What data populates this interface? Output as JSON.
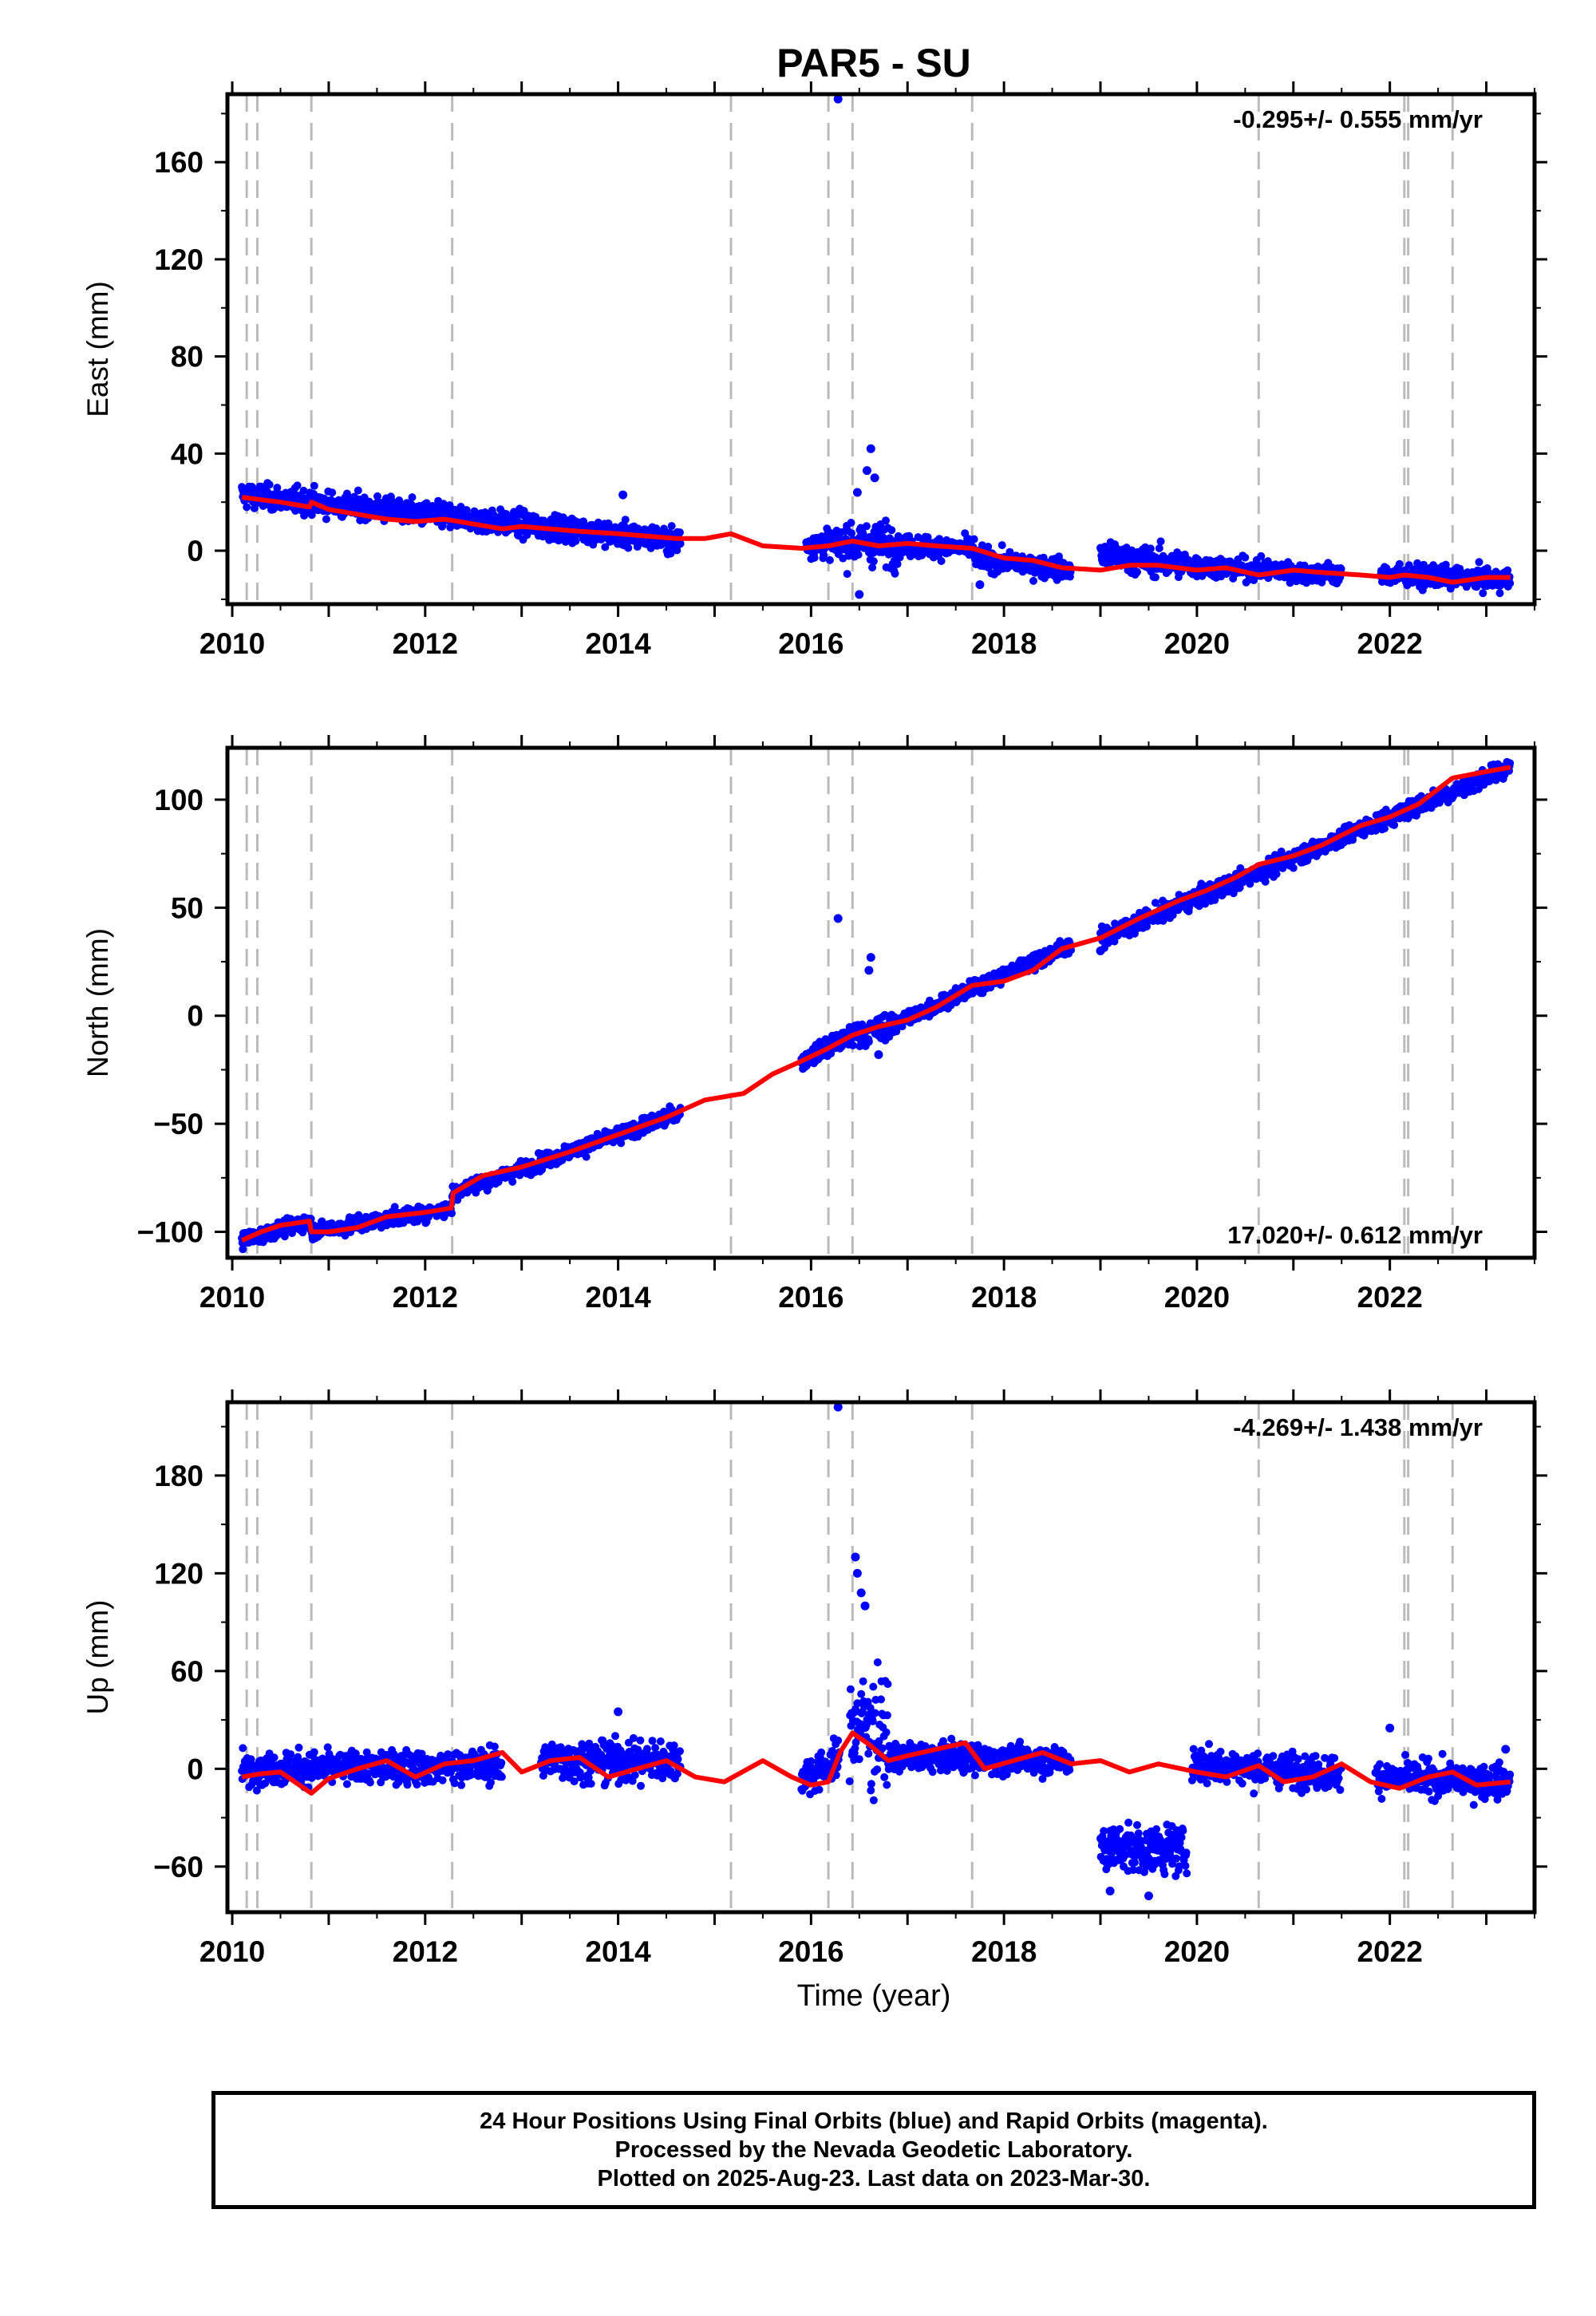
{
  "title": "PAR5 - SU",
  "colors": {
    "data": "#0000ff",
    "model": "#ff0000",
    "offset_line": "#bbbbbb",
    "frame": "#000000"
  },
  "chart_data": [
    {
      "type": "scatter",
      "component": "east",
      "ylabel": "East (mm)",
      "xlabel": "",
      "ylim": [
        -22,
        188
      ],
      "xlim": [
        2009.95,
        2023.5
      ],
      "yticks": [
        0,
        40,
        80,
        120,
        160
      ],
      "xticks": [
        2010,
        2012,
        2014,
        2016,
        2018,
        2020,
        2022
      ],
      "rate_label": "-0.295+/- 0.555 mm/yr",
      "rate_position": "top-right",
      "offsets": [
        2010.15,
        2010.26,
        2010.82,
        2012.28,
        2015.17,
        2016.18,
        2016.43,
        2017.67,
        2020.64,
        2022.15,
        2022.19,
        2022.65
      ],
      "model": {
        "x": [
          2010.1,
          2010.3,
          2010.5,
          2010.8,
          2010.82,
          2011.0,
          2011.3,
          2011.6,
          2011.9,
          2012.2,
          2012.5,
          2012.8,
          2013.0,
          2013.3,
          2013.6,
          2014.0,
          2014.3,
          2014.6,
          2014.9,
          2015.17,
          2015.5,
          2015.9,
          2016.18,
          2016.43,
          2016.7,
          2017.0,
          2017.3,
          2017.67,
          2018.0,
          2018.3,
          2018.6,
          2019.0,
          2019.3,
          2019.6,
          2020.0,
          2020.3,
          2020.64,
          2021.0,
          2021.3,
          2021.7,
          2022.0,
          2022.15,
          2022.4,
          2022.65,
          2023.0,
          2023.25
        ],
        "y": [
          22,
          21,
          20,
          18,
          20,
          17,
          15,
          13,
          12,
          13,
          11,
          9,
          10,
          9,
          8,
          7,
          6,
          5,
          5,
          7,
          2,
          1,
          2,
          4,
          2,
          3,
          2,
          1,
          -3,
          -4,
          -7,
          -8,
          -6,
          -6,
          -8,
          -7,
          -10,
          -8,
          -9,
          -10,
          -11,
          -10,
          -11,
          -13,
          -11,
          -11
        ]
      },
      "segments": [
        {
          "x0": 2010.1,
          "x1": 2014.65,
          "y0": 23,
          "y1": 4,
          "noise": 3.5
        },
        {
          "x0": 2015.95,
          "x1": 2016.35,
          "y0": 3,
          "y1": 3,
          "noise": 4
        },
        {
          "x0": 2016.35,
          "x1": 2016.9,
          "y0": 4,
          "y1": 2,
          "noise": 6
        },
        {
          "x0": 2016.9,
          "x1": 2017.7,
          "y0": 2,
          "y1": 1,
          "noise": 3
        },
        {
          "x0": 2017.7,
          "x1": 2018.7,
          "y0": -3,
          "y1": -8,
          "noise": 3
        },
        {
          "x0": 2019.0,
          "x1": 2019.9,
          "y0": -2,
          "y1": -6,
          "noise": 4
        },
        {
          "x0": 2019.9,
          "x1": 2021.5,
          "y0": -6,
          "y1": -10,
          "noise": 3
        },
        {
          "x0": 2021.9,
          "x1": 2023.25,
          "y0": -10,
          "y1": -12,
          "noise": 3
        }
      ],
      "outliers": [
        [
          2016.28,
          186
        ],
        [
          2016.62,
          42
        ],
        [
          2016.66,
          30
        ],
        [
          2016.48,
          24
        ],
        [
          2016.5,
          -18
        ],
        [
          2014.05,
          23
        ],
        [
          2017.75,
          -14
        ],
        [
          2016.58,
          33
        ]
      ]
    },
    {
      "type": "scatter",
      "component": "north",
      "ylabel": "North (mm)",
      "xlabel": "",
      "ylim": [
        -112,
        124
      ],
      "xlim": [
        2009.95,
        2023.5
      ],
      "yticks": [
        -100,
        -50,
        0,
        50,
        100
      ],
      "xticks": [
        2010,
        2012,
        2014,
        2016,
        2018,
        2020,
        2022
      ],
      "rate_label": "17.020+/- 0.612 mm/yr",
      "rate_position": "bottom-right",
      "offsets": [
        2010.15,
        2010.26,
        2010.82,
        2012.28,
        2015.17,
        2016.18,
        2016.43,
        2017.67,
        2020.64,
        2022.15,
        2022.19,
        2022.65
      ],
      "model": {
        "x": [
          2010.1,
          2010.3,
          2010.5,
          2010.8,
          2010.82,
          2011.0,
          2011.3,
          2011.6,
          2012.0,
          2012.27,
          2012.29,
          2012.6,
          2013.0,
          2013.5,
          2014.0,
          2014.5,
          2014.9,
          2015.3,
          2015.6,
          2015.9,
          2016.18,
          2016.43,
          2016.7,
          2017.0,
          2017.3,
          2017.67,
          2018.0,
          2018.3,
          2018.6,
          2019.0,
          2019.4,
          2019.8,
          2020.1,
          2020.4,
          2020.64,
          2021.0,
          2021.3,
          2021.7,
          2022.0,
          2022.3,
          2022.65,
          2023.0,
          2023.25
        ],
        "y": [
          -104,
          -100,
          -97,
          -95,
          -100,
          -100,
          -98,
          -93,
          -91,
          -89,
          -82,
          -74,
          -70,
          -63,
          -55,
          -47,
          -39,
          -36,
          -27,
          -21,
          -15,
          -9,
          -5,
          -2,
          4,
          14,
          16,
          21,
          31,
          36,
          45,
          53,
          58,
          64,
          70,
          74,
          79,
          88,
          92,
          98,
          110,
          113,
          115
        ]
      },
      "segments": [
        {
          "x0": 2010.1,
          "x1": 2010.82,
          "y0": -104,
          "y1": -95,
          "noise": 2.5
        },
        {
          "x0": 2010.82,
          "x1": 2012.28,
          "y0": -100,
          "y1": -89,
          "noise": 2.5
        },
        {
          "x0": 2012.28,
          "x1": 2014.65,
          "y0": -82,
          "y1": -45,
          "noise": 2.5
        },
        {
          "x0": 2015.9,
          "x1": 2016.4,
          "y0": -21,
          "y1": -10,
          "noise": 3
        },
        {
          "x0": 2016.4,
          "x1": 2016.9,
          "y0": -9,
          "y1": -4,
          "noise": 4
        },
        {
          "x0": 2016.9,
          "x1": 2018.7,
          "y0": -3,
          "y1": 33,
          "noise": 2.5
        },
        {
          "x0": 2019.0,
          "x1": 2023.25,
          "y0": 36,
          "y1": 115,
          "noise": 3
        }
      ],
      "outliers": [
        [
          2016.28,
          45
        ],
        [
          2016.62,
          27
        ],
        [
          2016.6,
          21
        ],
        [
          2016.7,
          -18
        ],
        [
          2019.0,
          30
        ]
      ]
    },
    {
      "type": "scatter",
      "component": "up",
      "ylabel": "Up (mm)",
      "xlabel": "Time (year)",
      "ylim": [
        -88,
        225
      ],
      "xlim": [
        2009.95,
        2023.5
      ],
      "yticks": [
        -60,
        0,
        60,
        120,
        180
      ],
      "xticks": [
        2010,
        2012,
        2014,
        2016,
        2018,
        2020,
        2022
      ],
      "rate_label": "-4.269+/- 1.438 mm/yr",
      "rate_position": "top-right",
      "offsets": [
        2010.15,
        2010.26,
        2010.82,
        2012.28,
        2015.17,
        2016.18,
        2016.43,
        2017.67,
        2020.64,
        2022.15,
        2022.19,
        2022.65
      ],
      "model": {
        "x": [
          2010.1,
          2010.3,
          2010.5,
          2010.82,
          2011.0,
          2011.3,
          2011.6,
          2011.9,
          2012.2,
          2012.5,
          2012.8,
          2013.0,
          2013.3,
          2013.6,
          2013.9,
          2014.2,
          2014.5,
          2014.8,
          2015.1,
          2015.5,
          2015.8,
          2016.0,
          2016.18,
          2016.3,
          2016.43,
          2016.6,
          2016.8,
          2017.0,
          2017.3,
          2017.6,
          2017.8,
          2018.1,
          2018.4,
          2018.7,
          2019.0,
          2019.3,
          2019.6,
          2020.0,
          2020.3,
          2020.64,
          2020.9,
          2021.2,
          2021.5,
          2021.8,
          2022.1,
          2022.4,
          2022.65,
          2022.9,
          2023.25
        ],
        "y": [
          -5,
          -3,
          -2,
          -15,
          -6,
          0,
          5,
          -5,
          3,
          5,
          10,
          -2,
          5,
          7,
          -5,
          0,
          5,
          -5,
          -8,
          5,
          -5,
          -10,
          -8,
          10,
          22,
          15,
          5,
          8,
          12,
          16,
          0,
          5,
          10,
          3,
          5,
          -2,
          3,
          -2,
          -5,
          2,
          -8,
          -5,
          3,
          -8,
          -12,
          -5,
          -2,
          -10,
          -8
        ]
      },
      "segments": [
        {
          "x0": 2010.1,
          "x1": 2012.8,
          "y0": 0,
          "y1": 2,
          "noise": 7
        },
        {
          "x0": 2013.2,
          "x1": 2014.65,
          "y0": 5,
          "y1": 5,
          "noise": 9
        },
        {
          "x0": 2015.9,
          "x1": 2016.3,
          "y0": -5,
          "y1": 5,
          "noise": 8
        },
        {
          "x0": 2016.4,
          "x1": 2016.8,
          "y0": 30,
          "y1": 20,
          "noise": 25
        },
        {
          "x0": 2016.8,
          "x1": 2018.7,
          "y0": 8,
          "y1": 5,
          "noise": 6
        },
        {
          "x0": 2019.0,
          "x1": 2019.9,
          "y0": -48,
          "y1": -50,
          "noise": 10
        },
        {
          "x0": 2019.95,
          "x1": 2021.5,
          "y0": 3,
          "y1": -3,
          "noise": 7
        },
        {
          "x0": 2021.85,
          "x1": 2023.25,
          "y0": -5,
          "y1": -8,
          "noise": 7
        }
      ],
      "outliers": [
        [
          2016.28,
          222
        ],
        [
          2016.46,
          130
        ],
        [
          2016.48,
          120
        ],
        [
          2016.56,
          100
        ],
        [
          2016.52,
          108
        ],
        [
          2019.1,
          -75
        ],
        [
          2019.5,
          -78
        ],
        [
          2022.0,
          25
        ],
        [
          2014.0,
          35
        ],
        [
          2023.2,
          12
        ]
      ]
    }
  ],
  "footer": {
    "line1": "24 Hour Positions Using Final Orbits (blue) and Rapid Orbits (magenta).",
    "line2": "Processed by the Nevada Geodetic Laboratory.",
    "line3": "Plotted on 2025-Aug-23. Last data on 2023-Mar-30."
  }
}
